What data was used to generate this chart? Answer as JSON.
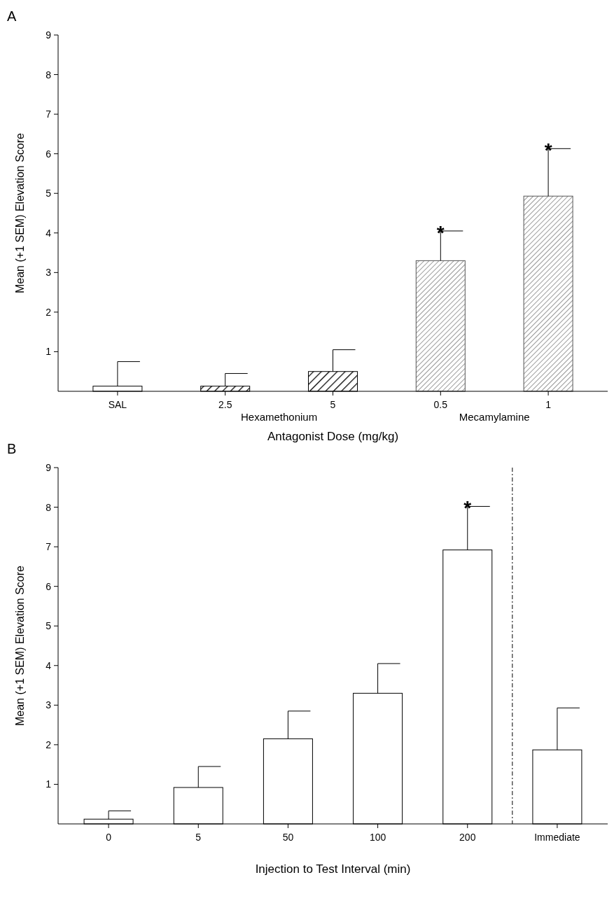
{
  "chart_data": [
    {
      "type": "bar",
      "title": "A",
      "xlabel": "Antagonist Dose (mg/kg)",
      "ylabel": "Mean (+1 SEM) Elevation Score",
      "categories": [
        "SAL",
        "2.5",
        "5",
        "0.5",
        "1"
      ],
      "values": [
        0.13,
        0.13,
        0.5,
        3.3,
        4.93
      ],
      "errors": [
        [
          0.13,
          0.75
        ],
        [
          0.13,
          0.45
        ],
        [
          0.5,
          1.05
        ],
        [
          3.3,
          4.05
        ],
        [
          4.93,
          6.13
        ]
      ],
      "colors": [
        "#ffffff",
        "#000000",
        "#000000",
        "#555555",
        "#555555"
      ],
      "ylim": [
        0,
        9
      ],
      "yticks": [
        1,
        2,
        3,
        4,
        5,
        6,
        7,
        8,
        9
      ],
      "grid": false,
      "annotations": [
        "Hexamethonium",
        "Mecamylamine",
        {
          "text": "*",
          "x": "0.5",
          "y": 4.05
        },
        {
          "text": "*",
          "x": "1",
          "y": 6.13
        }
      ]
    },
    {
      "type": "bar",
      "title": "B",
      "xlabel": "Injection to Test Interval (min)",
      "ylabel": "Mean (+1 SEM) Elevation Score",
      "categories": [
        "0",
        "5",
        "50",
        "100",
        "200",
        "Immediate"
      ],
      "values": [
        0.12,
        0.92,
        2.15,
        3.3,
        6.92,
        1.87
      ],
      "errors": [
        [
          0.12,
          0.33
        ],
        [
          0.92,
          1.45
        ],
        [
          2.15,
          2.85
        ],
        [
          3.3,
          4.05
        ],
        [
          6.92,
          8.02
        ],
        [
          1.87,
          2.93
        ]
      ],
      "colors": [
        "#ffffff",
        "#ffffff",
        "#ffffff",
        "#ffffff",
        "#ffffff",
        "#ffffff"
      ],
      "ylim": [
        0,
        9
      ],
      "yticks": [
        1,
        2,
        3,
        4,
        5,
        6,
        7,
        8,
        9
      ],
      "grid": false,
      "annotations": [
        {
          "text": "*",
          "x": "200",
          "y": 8.02
        }
      ]
    }
  ]
}
